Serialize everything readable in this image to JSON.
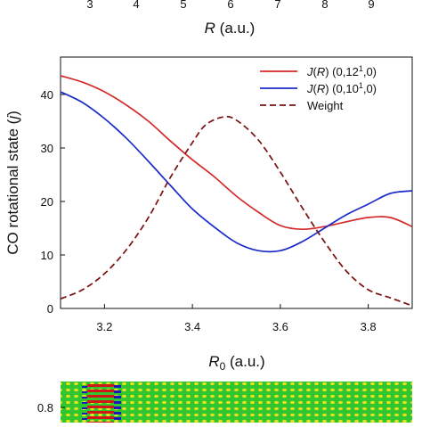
{
  "top_axis": {
    "ticks": [
      "3",
      "4",
      "5",
      "6",
      "7",
      "8",
      "9"
    ],
    "label_var": "R",
    "label_unit": " (a.u.)"
  },
  "chart_data": {
    "type": "line",
    "xlabel_var": "R",
    "xlabel_sub": "0",
    "xlabel_unit": " (a.u.)",
    "ylabel_text": "CO rotational state (",
    "ylabel_var": "j",
    "ylabel_close": ")",
    "xlim": [
      3.1,
      3.9
    ],
    "ylim": [
      0,
      47
    ],
    "xticks": [
      3.2,
      3.4,
      3.6,
      3.8
    ],
    "xtick_labels": [
      "3.2",
      "3.4",
      "3.6",
      "3.8"
    ],
    "yticks": [
      0,
      10,
      20,
      30,
      40
    ],
    "ytick_labels": [
      "0",
      "10",
      "20",
      "30",
      "40"
    ],
    "legend_position": "top-right",
    "series": [
      {
        "name": "J(R) (0,12¹,0)",
        "legend": {
          "var": "J",
          "arg": "R",
          "rest": " (0,12",
          "sup": "1",
          "end": ",0)"
        },
        "color": "#d42a2a",
        "dash": "solid",
        "x": [
          3.1,
          3.15,
          3.2,
          3.25,
          3.3,
          3.35,
          3.4,
          3.45,
          3.5,
          3.55,
          3.6,
          3.65,
          3.7,
          3.75,
          3.8,
          3.85,
          3.9
        ],
        "y": [
          43.5,
          42.3,
          40.5,
          38.0,
          35.0,
          31.3,
          27.8,
          24.6,
          21.0,
          18.0,
          15.5,
          14.8,
          15.3,
          16.2,
          17.0,
          17.0,
          15.3
        ]
      },
      {
        "name": "J(R) (0,10¹,0)",
        "legend": {
          "var": "J",
          "arg": "R",
          "rest": " (0,10",
          "sup": "1",
          "end": ",0)"
        },
        "color": "#1a2bc8",
        "dash": "solid",
        "x": [
          3.1,
          3.15,
          3.2,
          3.25,
          3.3,
          3.35,
          3.4,
          3.45,
          3.5,
          3.55,
          3.6,
          3.65,
          3.7,
          3.75,
          3.8,
          3.85,
          3.9
        ],
        "y": [
          40.5,
          38.5,
          35.5,
          31.8,
          27.5,
          23.0,
          18.6,
          15.2,
          12.3,
          10.8,
          10.8,
          12.5,
          15.0,
          17.5,
          19.5,
          21.5,
          22.0
        ]
      },
      {
        "name": "Weight",
        "legend": {
          "var": "",
          "arg": "",
          "rest": "Weight",
          "sup": "",
          "end": ""
        },
        "color": "#7a1010",
        "dash": "dashed",
        "x": [
          3.1,
          3.15,
          3.2,
          3.25,
          3.3,
          3.35,
          3.4,
          3.43,
          3.47,
          3.5,
          3.55,
          3.6,
          3.65,
          3.7,
          3.75,
          3.8,
          3.85,
          3.9
        ],
        "y": [
          1.8,
          3.5,
          6.5,
          11.0,
          17.0,
          24.5,
          31.0,
          34.3,
          35.8,
          35.2,
          31.5,
          25.5,
          18.8,
          12.5,
          7.0,
          3.5,
          2.0,
          0.5
        ]
      }
    ]
  },
  "bottom_panel": {
    "ytick_label": "0.8",
    "colors": {
      "background": "#2fc62f",
      "red": "#d01818",
      "blue": "#1a1ab8",
      "yellow": "#e6e020"
    }
  }
}
